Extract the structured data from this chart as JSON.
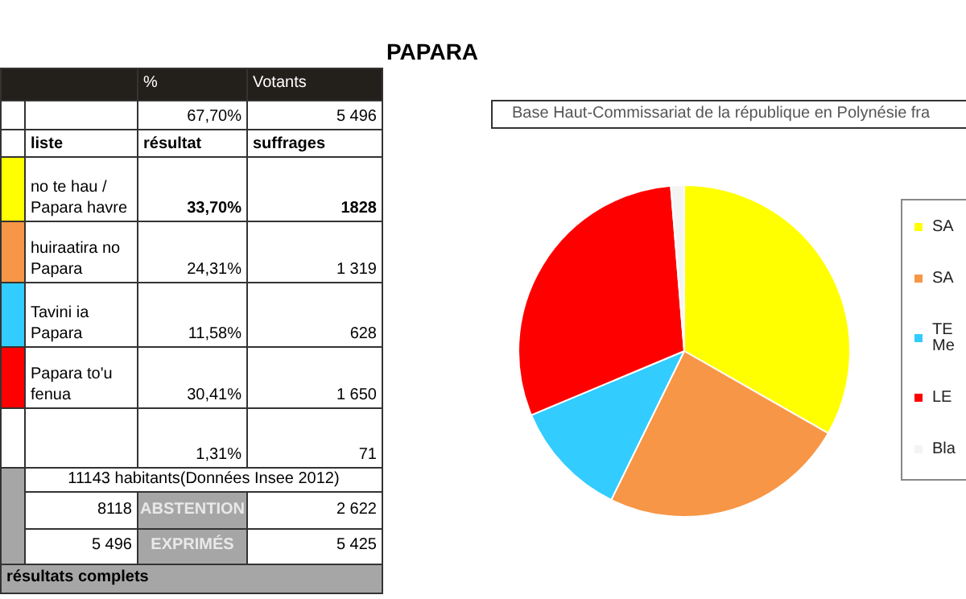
{
  "chart_data": [
    {
      "type": "other",
      "title": "PAPARA",
      "annotations": [
        "%",
        "Votants",
        "67,70%",
        "5 496",
        "liste",
        "résultat",
        "suffrages",
        "no te hau / Papara havre",
        "33,70%",
        "1828",
        "huiraatira no Papara",
        "24,31%",
        "1 319",
        "Tavini ia Papara",
        "11,58%",
        "628",
        "Papara to'u fenua",
        "30,41%",
        "1 650",
        "1,31%",
        "71",
        "11143 habitants(Données Insee 2012)",
        "8118",
        "ABSTENTION",
        "2 622",
        "5 496",
        "EXPRIMÉS",
        "5 425",
        "résultats complets"
      ]
    },
    {
      "type": "pie",
      "subtitle": "Base Haut-Commissariat de la république en Polynésie fra",
      "categories": [
        "SA",
        "SA",
        "TE Me",
        "LE",
        "Bla"
      ],
      "values": [
        33.26,
        24.0,
        11.43,
        30.02,
        1.29
      ],
      "colors": [
        "#ffff00",
        "#f79646",
        "#33ccff",
        "#ff0000",
        "#f4f4f4"
      ],
      "legend": "right"
    }
  ]
}
